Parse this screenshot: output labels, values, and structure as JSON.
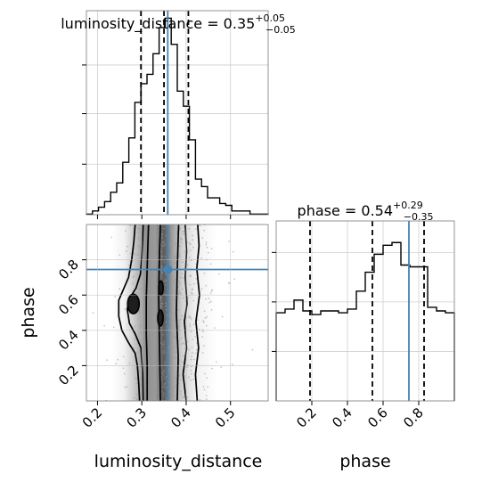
{
  "chart_data": [
    {
      "type": "histogram",
      "panel": "luminosity_distance-marginal",
      "title": {
        "main": "luminosity_distance = 0.35",
        "plus": "+0.05",
        "minus": "−0.05"
      },
      "bin_edges": [
        0.175,
        0.1887,
        0.2023,
        0.216,
        0.2297,
        0.2433,
        0.257,
        0.2707,
        0.2843,
        0.298,
        0.3117,
        0.3253,
        0.339,
        0.3527,
        0.3663,
        0.38,
        0.3937,
        0.4073,
        0.421,
        0.4347,
        0.4483,
        0.462,
        0.4757,
        0.4893,
        0.503,
        0.5167,
        0.5303,
        0.544,
        0.5577,
        0.5713,
        0.585
      ],
      "density": [
        0.003,
        0.02,
        0.04,
        0.07,
        0.12,
        0.17,
        0.28,
        0.41,
        0.6,
        0.7,
        0.75,
        0.86,
        1.0,
        1.05,
        0.91,
        0.66,
        0.58,
        0.4,
        0.19,
        0.15,
        0.09,
        0.09,
        0.06,
        0.05,
        0.02,
        0.02,
        0.02,
        0.003,
        0.003,
        0.003
      ],
      "quantile_lines": [
        0.298,
        0.35,
        0.405
      ],
      "truth_value": 0.3585,
      "xlim": [
        0.175,
        0.585
      ]
    },
    {
      "type": "histogram",
      "panel": "phase-marginal",
      "title": {
        "main": "phase = 0.54",
        "plus": "+0.29",
        "minus": "−0.35"
      },
      "bin_edges": [
        0.0,
        0.05,
        0.1,
        0.15,
        0.2,
        0.25,
        0.3,
        0.35,
        0.4,
        0.45,
        0.5,
        0.55,
        0.6,
        0.65,
        0.7,
        0.75,
        0.8,
        0.85,
        0.9,
        0.95,
        1.0
      ],
      "density": [
        0.98,
        1.02,
        1.12,
        1.0,
        0.96,
        1.0,
        1.0,
        0.98,
        1.02,
        1.22,
        1.43,
        1.63,
        1.73,
        1.76,
        1.51,
        1.49,
        1.49,
        1.04,
        1.0,
        0.98
      ],
      "quantile_lines": [
        0.19,
        0.54,
        0.83
      ],
      "truth_value": 0.745,
      "xlim": [
        0.0,
        1.0
      ],
      "xticks": [
        "0.2",
        "0.4",
        "0.6",
        "0.8"
      ]
    },
    {
      "type": "scatter-contour",
      "panel": "phase-vs-luminosity_distance",
      "xlabel": "luminosity_distance",
      "ylabel": "phase",
      "xlim": [
        0.175,
        0.585
      ],
      "ylim": [
        0.0,
        1.0
      ],
      "xticks": [
        "0.2",
        "0.3",
        "0.4",
        "0.5"
      ],
      "yticks": [
        "0.2",
        "0.4",
        "0.6",
        "0.8"
      ],
      "truth_point": [
        0.3585,
        0.745
      ],
      "contour_levels": [
        [
          [
            0.295,
            0.0
          ],
          [
            0.293,
            0.1
          ],
          [
            0.29,
            0.2
          ],
          [
            0.285,
            0.27
          ],
          [
            0.27,
            0.33
          ],
          [
            0.255,
            0.4
          ],
          [
            0.248,
            0.48
          ],
          [
            0.248,
            0.57
          ],
          [
            0.258,
            0.63
          ],
          [
            0.27,
            0.7
          ],
          [
            0.277,
            0.8
          ],
          [
            0.282,
            0.9
          ],
          [
            0.285,
            1.0
          ]
        ],
        [
          [
            0.303,
            0.0
          ],
          [
            0.302,
            0.15
          ],
          [
            0.298,
            0.3
          ],
          [
            0.285,
            0.38
          ],
          [
            0.272,
            0.44
          ],
          [
            0.267,
            0.52
          ],
          [
            0.272,
            0.58
          ],
          [
            0.287,
            0.64
          ],
          [
            0.297,
            0.72
          ],
          [
            0.3,
            0.82
          ],
          [
            0.302,
            0.92
          ],
          [
            0.303,
            1.0
          ]
        ],
        [
          [
            0.312,
            0.0
          ],
          [
            0.312,
            0.2
          ],
          [
            0.31,
            0.38
          ],
          [
            0.31,
            0.58
          ],
          [
            0.312,
            0.75
          ],
          [
            0.315,
            1.0
          ]
        ],
        [
          [
            0.342,
            0.0
          ],
          [
            0.34,
            0.3
          ],
          [
            0.338,
            0.6
          ],
          [
            0.34,
            0.85
          ],
          [
            0.342,
            1.0
          ]
        ],
        [
          [
            0.38,
            0.0
          ],
          [
            0.382,
            0.25
          ],
          [
            0.378,
            0.5
          ],
          [
            0.38,
            0.75
          ],
          [
            0.383,
            1.0
          ]
        ],
        [
          [
            0.4,
            0.0
          ],
          [
            0.393,
            0.15
          ],
          [
            0.401,
            0.3
          ],
          [
            0.396,
            0.45
          ],
          [
            0.402,
            0.55
          ],
          [
            0.398,
            0.7
          ],
          [
            0.401,
            0.85
          ],
          [
            0.398,
            1.0
          ]
        ],
        [
          [
            0.425,
            0.0
          ],
          [
            0.421,
            0.15
          ],
          [
            0.428,
            0.3
          ],
          [
            0.422,
            0.45
          ],
          [
            0.43,
            0.6
          ],
          [
            0.424,
            0.75
          ],
          [
            0.429,
            0.88
          ],
          [
            0.426,
            1.0
          ]
        ]
      ],
      "inner_blobs": [
        {
          "cx": 0.281,
          "cy": 0.55,
          "rx": 0.013,
          "ry": 0.055
        },
        {
          "cx": 0.342,
          "cy": 0.47,
          "rx": 0.006,
          "ry": 0.045
        },
        {
          "cx": 0.343,
          "cy": 0.64,
          "rx": 0.005,
          "ry": 0.04
        }
      ]
    }
  ]
}
